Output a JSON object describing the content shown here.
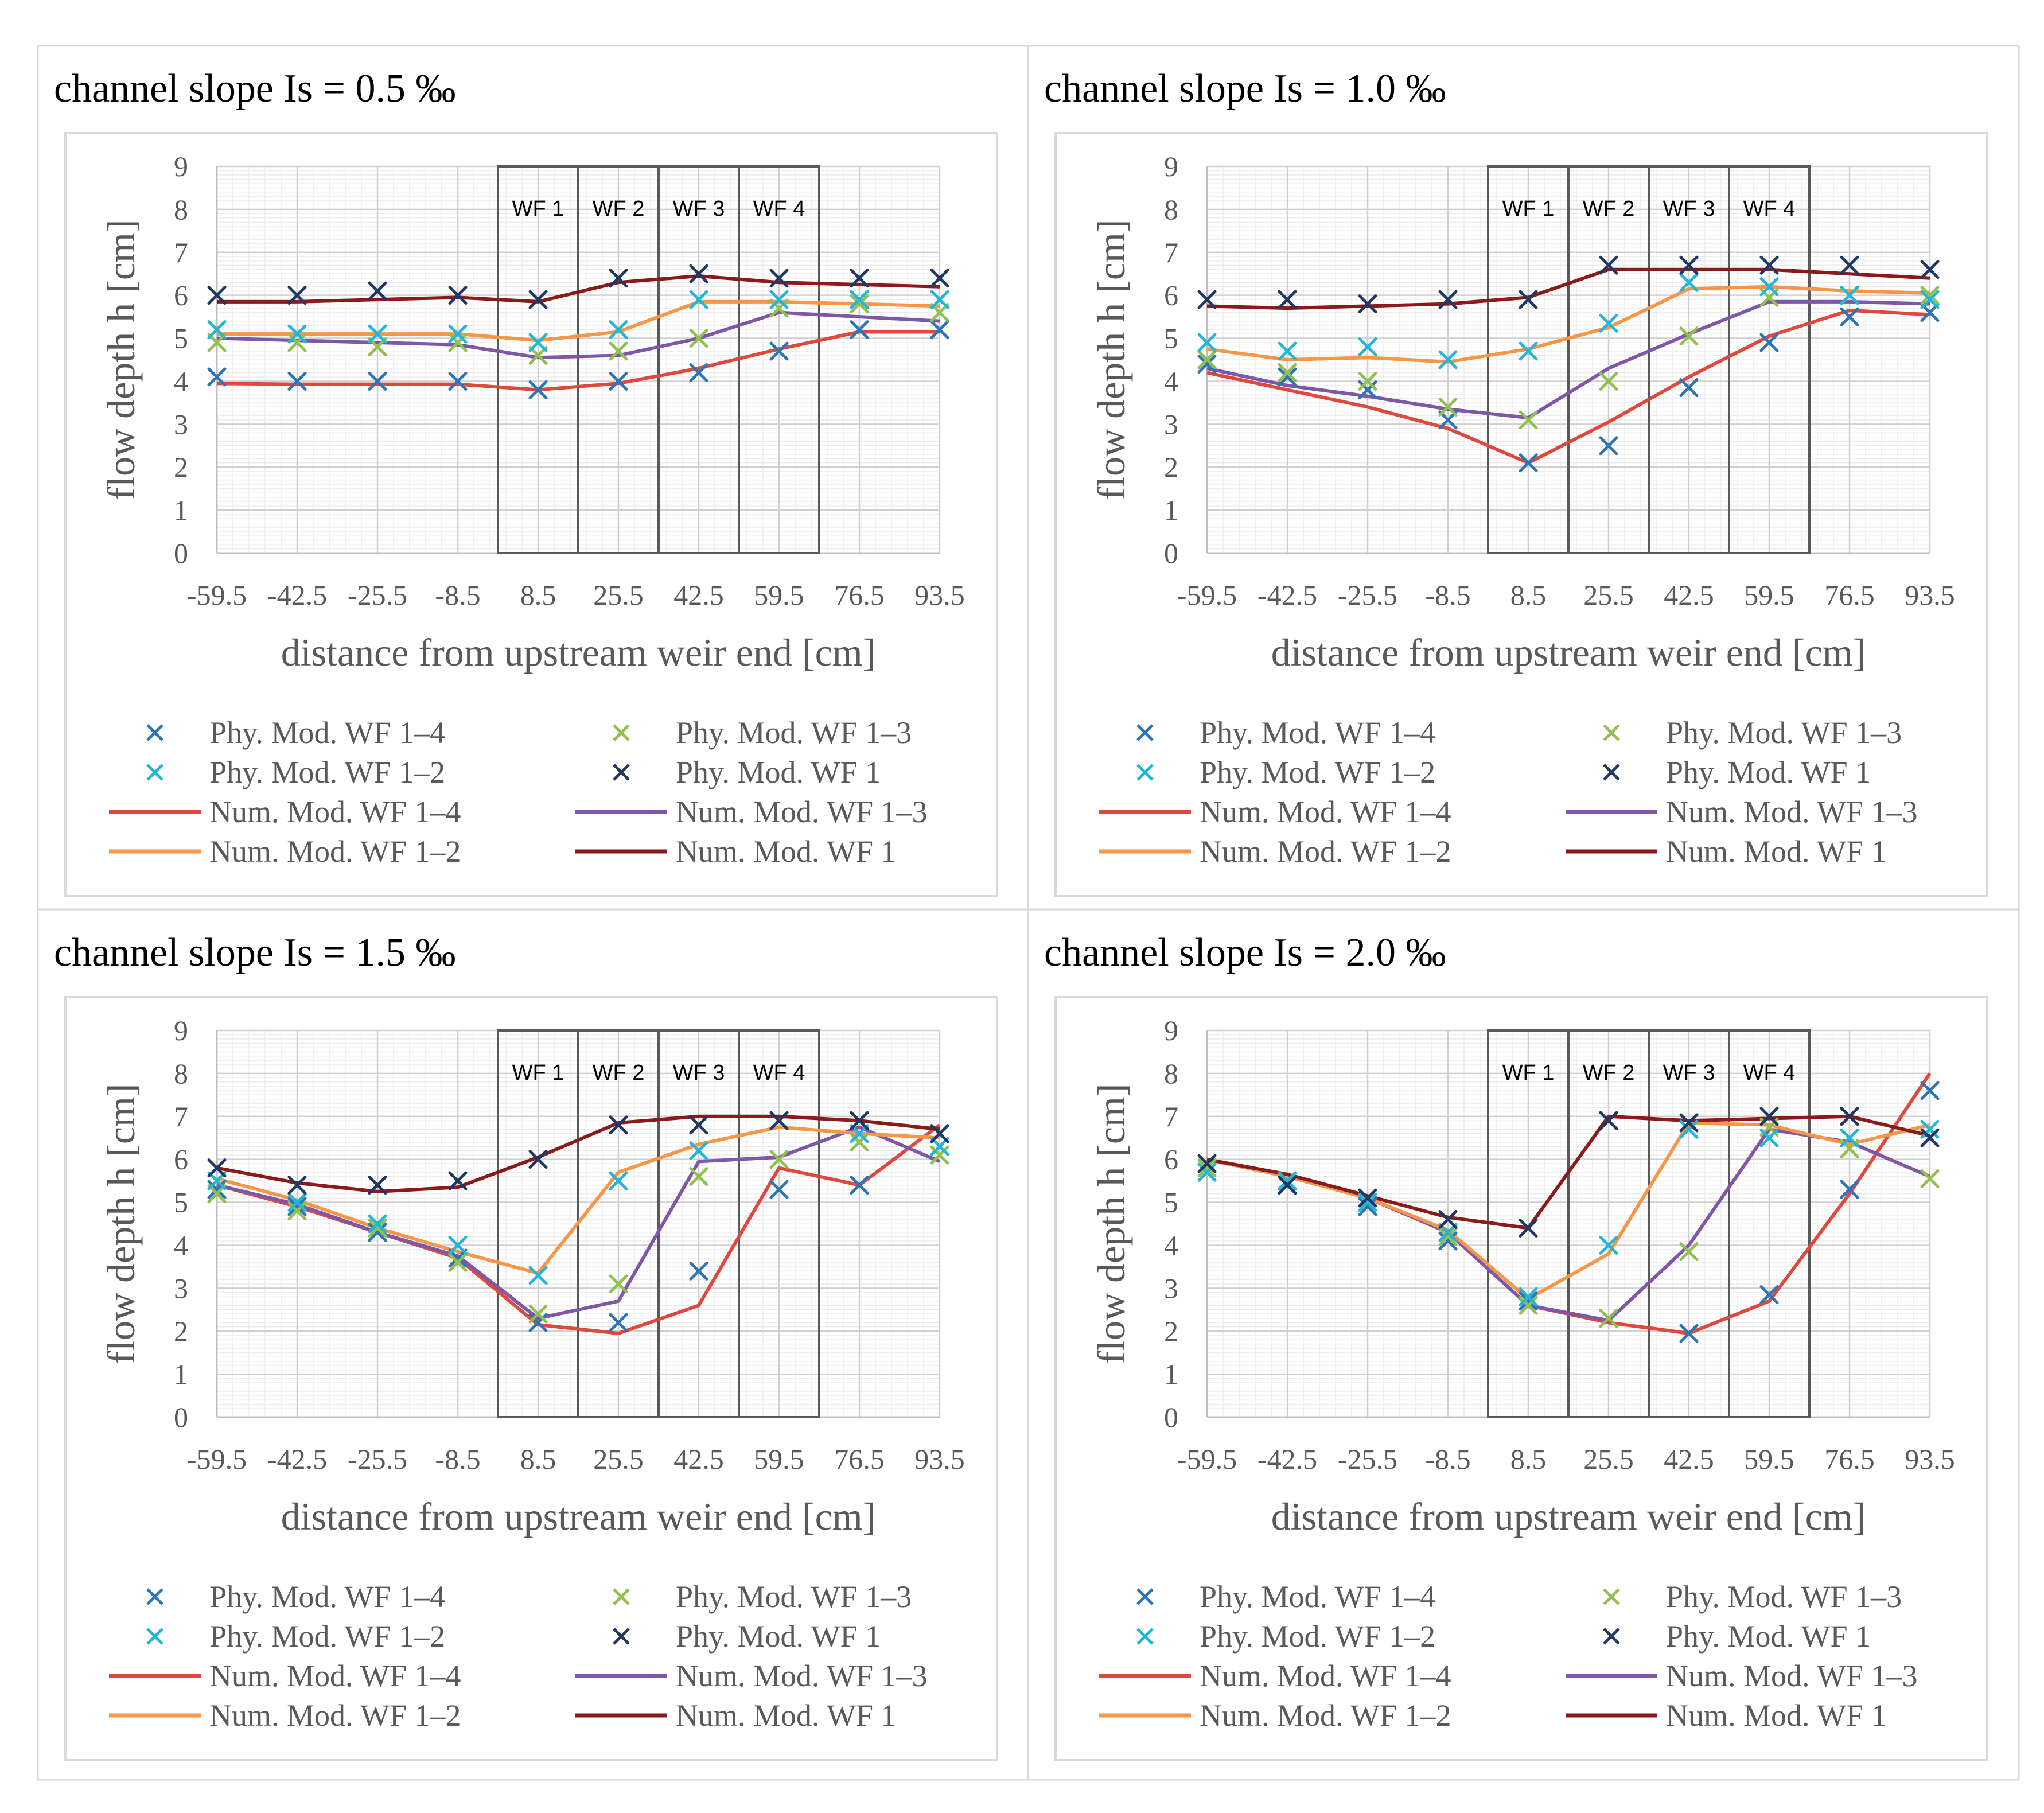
{
  "figure": {
    "panels": [
      {
        "title": "channel slope Is = 0.5 ‰"
      },
      {
        "title": "channel slope Is = 1.0 ‰"
      },
      {
        "title": "channel slope Is = 1.5 ‰"
      },
      {
        "title": "channel slope Is = 2.0 ‰"
      }
    ]
  },
  "chart_data": [
    {
      "type": "line",
      "title": "channel slope Is = 0.5 ‰",
      "xlabel": "distance from upstream weir end [cm]",
      "ylabel": "flow depth h [cm]",
      "categories": [
        "-59.5",
        "-42.5",
        "-25.5",
        "-8.5",
        "8.5",
        "25.5",
        "42.5",
        "59.5",
        "76.5",
        "93.5"
      ],
      "yticks": [
        "0",
        "1",
        "2",
        "3",
        "4",
        "5",
        "6",
        "7",
        "8",
        "9"
      ],
      "ylim": [
        0,
        9
      ],
      "grid": true,
      "weir_fields": [
        "WF 1",
        "WF 2",
        "WF 3",
        "WF 4"
      ],
      "series": [
        {
          "name": "Phy. Mod. WF 1–4",
          "kind": "marker",
          "color": "#2E75B6",
          "values": [
            4.1,
            4.0,
            4.0,
            4.0,
            3.8,
            4.0,
            4.2,
            4.7,
            5.2,
            5.2
          ]
        },
        {
          "name": "Phy. Mod. WF 1–3",
          "kind": "marker",
          "color": "#92C050",
          "values": [
            4.9,
            4.9,
            4.8,
            4.9,
            4.6,
            4.7,
            5.0,
            5.7,
            5.8,
            5.6
          ]
        },
        {
          "name": "Phy. Mod. WF 1–2",
          "kind": "marker",
          "color": "#24B6D6",
          "values": [
            5.2,
            5.1,
            5.1,
            5.1,
            4.9,
            5.2,
            5.9,
            5.9,
            5.9,
            5.9
          ]
        },
        {
          "name": "Phy. Mod. WF 1",
          "kind": "marker",
          "color": "#1F3864",
          "values": [
            6.0,
            6.0,
            6.1,
            6.0,
            5.9,
            6.4,
            6.5,
            6.4,
            6.4,
            6.4
          ]
        },
        {
          "name": "Num. Mod. WF 1–4",
          "kind": "line",
          "color": "#E0483E",
          "values": [
            3.95,
            3.93,
            3.93,
            3.93,
            3.8,
            3.95,
            4.3,
            4.75,
            5.15,
            5.15
          ]
        },
        {
          "name": "Num. Mod. WF 1–3",
          "kind": "line",
          "color": "#7E57A8",
          "values": [
            5.0,
            4.95,
            4.9,
            4.85,
            4.55,
            4.6,
            5.0,
            5.6,
            5.5,
            5.4
          ]
        },
        {
          "name": "Num. Mod. WF 1–2",
          "kind": "line",
          "color": "#F79646",
          "values": [
            5.1,
            5.1,
            5.1,
            5.1,
            4.95,
            5.15,
            5.85,
            5.85,
            5.8,
            5.75
          ]
        },
        {
          "name": "Num. Mod. WF 1",
          "kind": "line",
          "color": "#8B1A1A",
          "values": [
            5.85,
            5.85,
            5.9,
            5.95,
            5.85,
            6.3,
            6.45,
            6.3,
            6.25,
            6.2
          ]
        }
      ]
    },
    {
      "type": "line",
      "title": "channel slope Is = 1.0 ‰",
      "xlabel": "distance from upstream weir end [cm]",
      "ylabel": "flow depth h [cm]",
      "categories": [
        "-59.5",
        "-42.5",
        "-25.5",
        "-8.5",
        "8.5",
        "25.5",
        "42.5",
        "59.5",
        "76.5",
        "93.5"
      ],
      "yticks": [
        "0",
        "1",
        "2",
        "3",
        "4",
        "5",
        "6",
        "7",
        "8",
        "9"
      ],
      "ylim": [
        0,
        9
      ],
      "grid": true,
      "weir_fields": [
        "WF 1",
        "WF 2",
        "WF 3",
        "WF 4"
      ],
      "series": [
        {
          "name": "Phy. Mod. WF 1–4",
          "kind": "marker",
          "color": "#2E75B6",
          "values": [
            4.4,
            4.1,
            3.8,
            3.1,
            2.1,
            2.5,
            3.85,
            4.9,
            5.5,
            5.6
          ]
        },
        {
          "name": "Phy. Mod. WF 1–3",
          "kind": "marker",
          "color": "#92C050",
          "values": [
            4.5,
            4.2,
            4.0,
            3.4,
            3.1,
            4.0,
            5.05,
            5.95,
            6.0,
            6.0
          ]
        },
        {
          "name": "Phy. Mod. WF 1–2",
          "kind": "marker",
          "color": "#24B6D6",
          "values": [
            4.9,
            4.7,
            4.8,
            4.5,
            4.7,
            5.35,
            6.3,
            6.2,
            6.0,
            5.9
          ]
        },
        {
          "name": "Phy. Mod. WF 1",
          "kind": "marker",
          "color": "#1F3864",
          "values": [
            5.9,
            5.9,
            5.8,
            5.9,
            5.9,
            6.7,
            6.7,
            6.7,
            6.7,
            6.6
          ]
        },
        {
          "name": "Num. Mod. WF 1–4",
          "kind": "line",
          "color": "#E0483E",
          "values": [
            4.2,
            3.8,
            3.4,
            2.9,
            2.1,
            3.05,
            4.1,
            5.05,
            5.65,
            5.55
          ]
        },
        {
          "name": "Num. Mod. WF 1–3",
          "kind": "line",
          "color": "#7E57A8",
          "values": [
            4.3,
            3.9,
            3.65,
            3.35,
            3.15,
            4.3,
            5.1,
            5.85,
            5.85,
            5.8
          ]
        },
        {
          "name": "Num. Mod. WF 1–2",
          "kind": "line",
          "color": "#F79646",
          "values": [
            4.75,
            4.5,
            4.55,
            4.45,
            4.75,
            5.25,
            6.15,
            6.2,
            6.1,
            6.05
          ]
        },
        {
          "name": "Num. Mod. WF 1",
          "kind": "line",
          "color": "#8B1A1A",
          "values": [
            5.75,
            5.7,
            5.75,
            5.8,
            5.95,
            6.6,
            6.6,
            6.6,
            6.5,
            6.4
          ]
        }
      ]
    },
    {
      "type": "line",
      "title": "channel slope Is = 1.5 ‰",
      "xlabel": "distance from upstream weir end [cm]",
      "ylabel": "flow depth h [cm]",
      "categories": [
        "-59.5",
        "-42.5",
        "-25.5",
        "-8.5",
        "8.5",
        "25.5",
        "42.5",
        "59.5",
        "76.5",
        "93.5"
      ],
      "yticks": [
        "0",
        "1",
        "2",
        "3",
        "4",
        "5",
        "6",
        "7",
        "8",
        "9"
      ],
      "ylim": [
        0,
        9
      ],
      "grid": true,
      "weir_fields": [
        "WF 1",
        "WF 2",
        "WF 3",
        "WF 4"
      ],
      "series": [
        {
          "name": "Phy. Mod. WF 1–4",
          "kind": "marker",
          "color": "#2E75B6",
          "values": [
            5.3,
            4.9,
            4.3,
            3.7,
            2.2,
            2.2,
            3.4,
            5.3,
            5.4,
            6.6
          ]
        },
        {
          "name": "Phy. Mod. WF 1–3",
          "kind": "marker",
          "color": "#92C050",
          "values": [
            5.2,
            4.8,
            4.4,
            3.6,
            2.4,
            3.1,
            5.6,
            6.0,
            6.4,
            6.1
          ]
        },
        {
          "name": "Phy. Mod. WF 1–2",
          "kind": "marker",
          "color": "#24B6D6",
          "values": [
            5.5,
            5.0,
            4.5,
            4.0,
            3.3,
            5.5,
            6.2,
            6.9,
            6.6,
            6.3
          ]
        },
        {
          "name": "Phy. Mod. WF 1",
          "kind": "marker",
          "color": "#1F3864",
          "values": [
            5.8,
            5.4,
            5.4,
            5.5,
            6.0,
            6.8,
            6.8,
            6.9,
            6.9,
            6.6
          ]
        },
        {
          "name": "Num. Mod. WF 1–4",
          "kind": "line",
          "color": "#E0483E",
          "values": [
            5.4,
            4.9,
            4.3,
            3.7,
            2.15,
            1.95,
            2.6,
            5.8,
            5.4,
            6.8
          ]
        },
        {
          "name": "Num. Mod. WF 1–3",
          "kind": "line",
          "color": "#7E57A8",
          "values": [
            5.4,
            4.95,
            4.3,
            3.75,
            2.3,
            2.7,
            5.95,
            6.05,
            6.75,
            5.95
          ]
        },
        {
          "name": "Num. Mod. WF 1–2",
          "kind": "line",
          "color": "#F79646",
          "values": [
            5.55,
            5.05,
            4.4,
            3.85,
            3.35,
            5.7,
            6.35,
            6.75,
            6.6,
            6.5
          ]
        },
        {
          "name": "Num. Mod. WF 1",
          "kind": "line",
          "color": "#8B1A1A",
          "values": [
            5.8,
            5.45,
            5.25,
            5.35,
            6.05,
            6.85,
            7.0,
            7.0,
            6.9,
            6.7
          ]
        }
      ]
    },
    {
      "type": "line",
      "title": "channel slope Is = 2.0 ‰",
      "xlabel": "distance from upstream weir end [cm]",
      "ylabel": "flow depth h [cm]",
      "categories": [
        "-59.5",
        "-42.5",
        "-25.5",
        "-8.5",
        "8.5",
        "25.5",
        "42.5",
        "59.5",
        "76.5",
        "93.5"
      ],
      "yticks": [
        "0",
        "1",
        "2",
        "3",
        "4",
        "5",
        "6",
        "7",
        "8",
        "9"
      ],
      "ylim": [
        0,
        9
      ],
      "grid": true,
      "weir_fields": [
        "WF 1",
        "WF 2",
        "WF 3",
        "WF 4"
      ],
      "series": [
        {
          "name": "Phy. Mod. WF 1–4",
          "kind": "marker",
          "color": "#2E75B6",
          "values": [
            5.7,
            5.4,
            4.9,
            4.1,
            2.7,
            2.3,
            1.95,
            2.85,
            5.3,
            7.6
          ]
        },
        {
          "name": "Phy. Mod. WF 1–3",
          "kind": "marker",
          "color": "#92C050",
          "values": [
            5.8,
            5.5,
            5.0,
            4.2,
            2.6,
            2.3,
            3.85,
            6.75,
            6.25,
            5.55
          ]
        },
        {
          "name": "Phy. Mod. WF 1–2",
          "kind": "marker",
          "color": "#24B6D6",
          "values": [
            5.7,
            5.5,
            5.0,
            4.3,
            2.8,
            4.0,
            6.7,
            6.5,
            6.5,
            6.7
          ]
        },
        {
          "name": "Phy. Mod. WF 1",
          "kind": "marker",
          "color": "#1F3864",
          "values": [
            5.9,
            5.4,
            5.1,
            4.6,
            4.4,
            6.9,
            6.85,
            7.0,
            7.0,
            6.5
          ]
        },
        {
          "name": "Num. Mod. WF 1–4",
          "kind": "line",
          "color": "#E0483E",
          "values": [
            6.0,
            5.6,
            5.1,
            4.3,
            2.6,
            2.2,
            1.95,
            2.7,
            5.2,
            8.0
          ]
        },
        {
          "name": "Num. Mod. WF 1–3",
          "kind": "line",
          "color": "#7E57A8",
          "values": [
            6.0,
            5.6,
            5.1,
            4.3,
            2.6,
            2.25,
            4.0,
            6.7,
            6.4,
            5.6
          ]
        },
        {
          "name": "Num. Mod. WF 1–2",
          "kind": "line",
          "color": "#F79646",
          "values": [
            6.0,
            5.6,
            5.1,
            4.35,
            2.75,
            3.8,
            6.85,
            6.8,
            6.35,
            6.8
          ]
        },
        {
          "name": "Num. Mod. WF 1",
          "kind": "line",
          "color": "#8B1A1A",
          "values": [
            6.0,
            5.65,
            5.15,
            4.65,
            4.4,
            7.0,
            6.9,
            6.95,
            7.0,
            6.55
          ]
        }
      ]
    }
  ]
}
